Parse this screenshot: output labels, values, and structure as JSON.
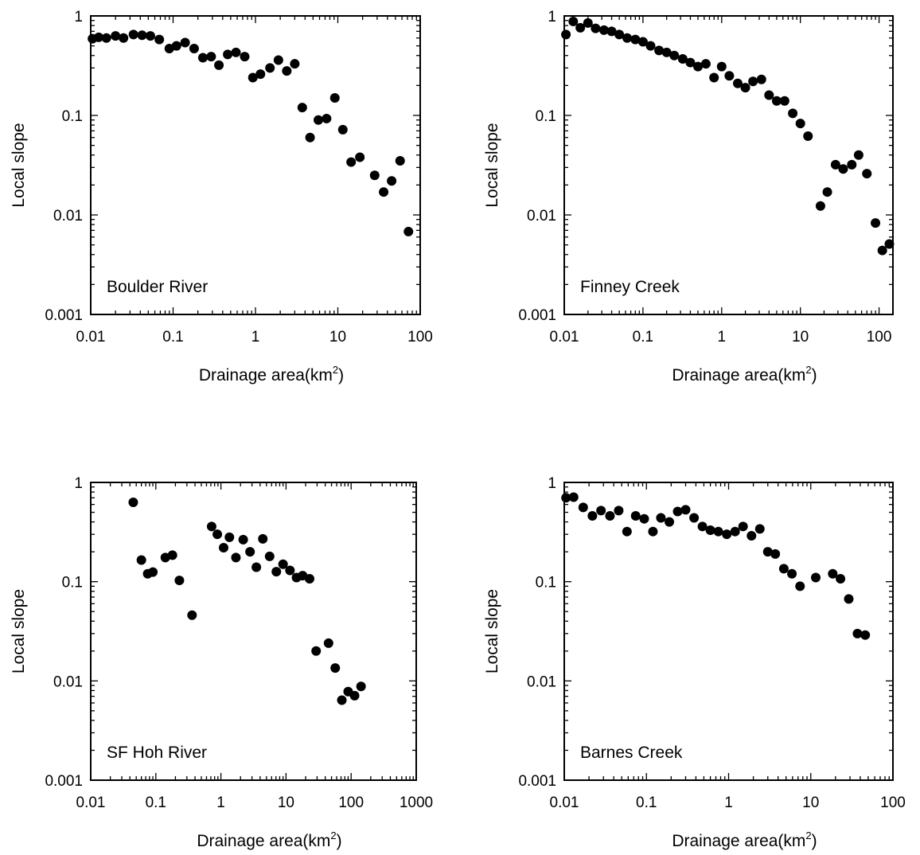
{
  "chart_data": [
    {
      "type": "scatter",
      "label": "Boulder River",
      "xlabel": "Drainage area(km",
      "xlabel_sup": "2",
      "xlabel_end": ")",
      "ylabel": "Local slope",
      "xscale": "log",
      "yscale": "log",
      "xlim": [
        0.01,
        100
      ],
      "ylim": [
        0.001,
        1
      ],
      "xticks": [
        "0.01",
        "0.1",
        "1",
        "10",
        "100"
      ],
      "yticks": [
        "0.001",
        "0.01",
        "0.1",
        "1"
      ],
      "points": [
        [
          0.0105,
          0.59
        ],
        [
          0.0125,
          0.61
        ],
        [
          0.0155,
          0.6
        ],
        [
          0.02,
          0.63
        ],
        [
          0.025,
          0.6
        ],
        [
          0.033,
          0.65
        ],
        [
          0.042,
          0.64
        ],
        [
          0.053,
          0.63
        ],
        [
          0.068,
          0.58
        ],
        [
          0.09,
          0.47
        ],
        [
          0.11,
          0.5
        ],
        [
          0.14,
          0.54
        ],
        [
          0.18,
          0.47
        ],
        [
          0.23,
          0.38
        ],
        [
          0.29,
          0.39
        ],
        [
          0.36,
          0.32
        ],
        [
          0.46,
          0.41
        ],
        [
          0.58,
          0.43
        ],
        [
          0.74,
          0.39
        ],
        [
          0.93,
          0.24
        ],
        [
          1.15,
          0.26
        ],
        [
          1.5,
          0.3
        ],
        [
          1.9,
          0.36
        ],
        [
          2.4,
          0.28
        ],
        [
          3.0,
          0.33
        ],
        [
          3.7,
          0.12
        ],
        [
          4.6,
          0.06
        ],
        [
          5.8,
          0.09
        ],
        [
          7.3,
          0.093
        ],
        [
          9.2,
          0.15
        ],
        [
          11.5,
          0.072
        ],
        [
          14.5,
          0.034
        ],
        [
          18.5,
          0.038
        ],
        [
          28,
          0.025
        ],
        [
          36,
          0.017
        ],
        [
          45,
          0.022
        ],
        [
          57,
          0.035
        ],
        [
          72,
          0.0068
        ]
      ]
    },
    {
      "type": "scatter",
      "label": "Finney Creek",
      "xlabel": "Drainage area(km",
      "xlabel_sup": "2",
      "xlabel_end": ")",
      "ylabel": "Local slope",
      "xscale": "log",
      "yscale": "log",
      "xlim": [
        0.01,
        150
      ],
      "ylim": [
        0.001,
        1
      ],
      "xticks": [
        "0.01",
        "0.1",
        "1",
        "10",
        "100"
      ],
      "yticks": [
        "0.001",
        "0.01",
        "0.1",
        "1"
      ],
      "points": [
        [
          0.0105,
          0.65
        ],
        [
          0.013,
          0.88
        ],
        [
          0.016,
          0.76
        ],
        [
          0.02,
          0.85
        ],
        [
          0.025,
          0.75
        ],
        [
          0.032,
          0.72
        ],
        [
          0.04,
          0.7
        ],
        [
          0.05,
          0.65
        ],
        [
          0.063,
          0.6
        ],
        [
          0.08,
          0.58
        ],
        [
          0.1,
          0.55
        ],
        [
          0.125,
          0.5
        ],
        [
          0.16,
          0.45
        ],
        [
          0.2,
          0.43
        ],
        [
          0.25,
          0.4
        ],
        [
          0.32,
          0.37
        ],
        [
          0.4,
          0.34
        ],
        [
          0.5,
          0.31
        ],
        [
          0.63,
          0.33
        ],
        [
          0.8,
          0.24
        ],
        [
          1.0,
          0.31
        ],
        [
          1.25,
          0.25
        ],
        [
          1.6,
          0.21
        ],
        [
          2.0,
          0.19
        ],
        [
          2.5,
          0.22
        ],
        [
          3.2,
          0.23
        ],
        [
          4.0,
          0.16
        ],
        [
          5.0,
          0.14
        ],
        [
          6.3,
          0.14
        ],
        [
          8.0,
          0.105
        ],
        [
          10,
          0.083
        ],
        [
          12.5,
          0.062
        ],
        [
          18,
          0.0123
        ],
        [
          22,
          0.017
        ],
        [
          28,
          0.032
        ],
        [
          35,
          0.029
        ],
        [
          45,
          0.032
        ],
        [
          55,
          0.04
        ],
        [
          70,
          0.026
        ],
        [
          90,
          0.0083
        ],
        [
          110,
          0.0044
        ],
        [
          135,
          0.0051
        ]
      ]
    },
    {
      "type": "scatter",
      "label": "SF Hoh River",
      "xlabel": "Drainage area(km",
      "xlabel_sup": "2",
      "xlabel_end": ")",
      "ylabel": "Local slope",
      "xscale": "log",
      "yscale": "log",
      "xlim": [
        0.01,
        1000
      ],
      "ylim": [
        0.001,
        1
      ],
      "xticks": [
        "0.01",
        "0.1",
        "1",
        "10",
        "100",
        "1000"
      ],
      "yticks": [
        "0.001",
        "0.01",
        "0.1",
        "1"
      ],
      "points": [
        [
          0.045,
          0.63
        ],
        [
          0.06,
          0.165
        ],
        [
          0.075,
          0.12
        ],
        [
          0.09,
          0.125
        ],
        [
          0.14,
          0.175
        ],
        [
          0.18,
          0.185
        ],
        [
          0.23,
          0.103
        ],
        [
          0.36,
          0.046
        ],
        [
          0.72,
          0.36
        ],
        [
          0.88,
          0.3
        ],
        [
          1.1,
          0.22
        ],
        [
          1.35,
          0.28
        ],
        [
          1.7,
          0.175
        ],
        [
          2.2,
          0.265
        ],
        [
          2.8,
          0.2
        ],
        [
          3.5,
          0.14
        ],
        [
          4.4,
          0.27
        ],
        [
          5.6,
          0.18
        ],
        [
          7.1,
          0.126
        ],
        [
          9,
          0.15
        ],
        [
          11.5,
          0.13
        ],
        [
          14.5,
          0.11
        ],
        [
          18,
          0.115
        ],
        [
          23,
          0.107
        ],
        [
          29,
          0.02
        ],
        [
          45,
          0.024
        ],
        [
          57,
          0.0135
        ],
        [
          72,
          0.0064
        ],
        [
          90,
          0.0078
        ],
        [
          113,
          0.0071
        ],
        [
          142,
          0.0088
        ]
      ]
    },
    {
      "type": "scatter",
      "label": "Barnes Creek",
      "xlabel": "Drainage area(km",
      "xlabel_sup": "2",
      "xlabel_end": ")",
      "ylabel": "Local slope",
      "xscale": "log",
      "yscale": "log",
      "xlim": [
        0.01,
        100
      ],
      "ylim": [
        0.001,
        1
      ],
      "xticks": [
        "0.01",
        "0.1",
        "1",
        "10",
        "100"
      ],
      "yticks": [
        "0.001",
        "0.01",
        "0.1",
        "1"
      ],
      "points": [
        [
          0.0105,
          0.7
        ],
        [
          0.013,
          0.71
        ],
        [
          0.017,
          0.56
        ],
        [
          0.022,
          0.46
        ],
        [
          0.028,
          0.52
        ],
        [
          0.036,
          0.46
        ],
        [
          0.046,
          0.52
        ],
        [
          0.058,
          0.32
        ],
        [
          0.074,
          0.46
        ],
        [
          0.094,
          0.43
        ],
        [
          0.12,
          0.32
        ],
        [
          0.15,
          0.44
        ],
        [
          0.19,
          0.4
        ],
        [
          0.24,
          0.51
        ],
        [
          0.3,
          0.53
        ],
        [
          0.38,
          0.44
        ],
        [
          0.48,
          0.36
        ],
        [
          0.6,
          0.33
        ],
        [
          0.75,
          0.32
        ],
        [
          0.95,
          0.3
        ],
        [
          1.2,
          0.32
        ],
        [
          1.5,
          0.36
        ],
        [
          1.9,
          0.29
        ],
        [
          2.4,
          0.34
        ],
        [
          3.0,
          0.2
        ],
        [
          3.7,
          0.19
        ],
        [
          4.7,
          0.135
        ],
        [
          5.9,
          0.12
        ],
        [
          7.4,
          0.09
        ],
        [
          11.5,
          0.11
        ],
        [
          18.5,
          0.12
        ],
        [
          23,
          0.107
        ],
        [
          29,
          0.067
        ],
        [
          37,
          0.03
        ],
        [
          46,
          0.029
        ]
      ]
    }
  ]
}
